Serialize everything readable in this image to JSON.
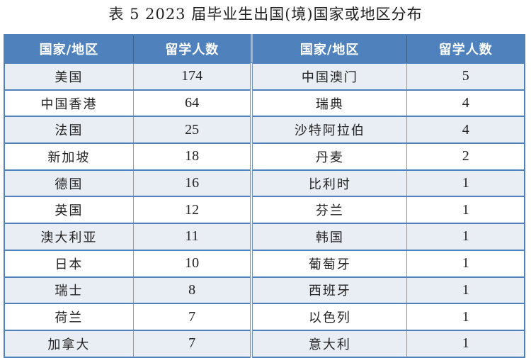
{
  "title": "表 5   2023 届毕业生出国(境)国家或地区分布",
  "headers": [
    "国家/地区",
    "留学人数",
    "国家/地区",
    "留学人数"
  ],
  "rows": [
    {
      "left_country": "美国",
      "left_count": "174",
      "right_country": "中国澳门",
      "right_count": "5"
    },
    {
      "left_country": "中国香港",
      "left_count": "64",
      "right_country": "瑞典",
      "right_count": "4"
    },
    {
      "left_country": "法国",
      "left_count": "25",
      "right_country": "沙特阿拉伯",
      "right_count": "4"
    },
    {
      "left_country": "新加坡",
      "left_count": "18",
      "right_country": "丹麦",
      "right_count": "2"
    },
    {
      "left_country": "德国",
      "left_count": "16",
      "right_country": "比利时",
      "right_count": "1"
    },
    {
      "left_country": "英国",
      "left_count": "12",
      "right_country": "芬兰",
      "right_count": "1"
    },
    {
      "left_country": "澳大利亚",
      "left_count": "11",
      "right_country": "韩国",
      "right_count": "1"
    },
    {
      "left_country": "日本",
      "left_count": "10",
      "right_country": "葡萄牙",
      "right_count": "1"
    },
    {
      "left_country": "瑞士",
      "left_count": "8",
      "right_country": "西班牙",
      "right_count": "1"
    },
    {
      "left_country": "荷兰",
      "left_count": "7",
      "right_country": "以色列",
      "right_count": "1"
    },
    {
      "left_country": "加拿大",
      "left_count": "7",
      "right_country": "意大利",
      "right_count": "1"
    }
  ],
  "colors": {
    "header_bg": "#4f81bd",
    "alt_row_bg": "#e9edf4",
    "border": "#4f81bd"
  }
}
